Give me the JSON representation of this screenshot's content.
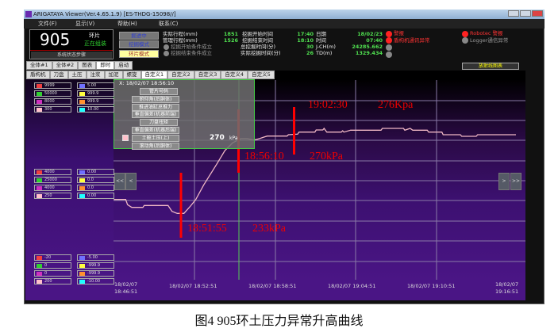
{
  "window": {
    "title": "ARIGATAYA Viewer(Ver.4.65.1.9) [ES-THDG-15098//]"
  },
  "menu": [
    "文件(F)",
    "显示(V)",
    "帮助(H)",
    "联系(C)"
  ],
  "display": {
    "ring_number": "905",
    "ring_label": "环片",
    "status": "正在组装",
    "footer": "系统状态步骤"
  },
  "mode_buttons": [
    "掘进中",
    "挖掘模式",
    "环片模式"
  ],
  "info": {
    "rows": [
      {
        "label": "实际行程(mm)",
        "value": "1851",
        "label2": "挖掘开始时间",
        "value2": "17:40",
        "label3": "日期",
        "value3": "18/02/23"
      },
      {
        "label": "管理行程(mm)",
        "value": "1526",
        "label2": "挖掘结束时间",
        "value2": "18:10",
        "label3": "时间",
        "value3": "07:40"
      },
      {
        "label": "挖掘开始条件成立",
        "value": "",
        "label2": "总挖掘时间(分)",
        "value2": "30",
        "label3": "J-CH(m)",
        "value3": "24285.662"
      },
      {
        "label": "挖掘结束条件成立",
        "value": "",
        "label2": "实际挖掘时间(分)",
        "value2": "26",
        "label3": "TD(m)",
        "value3": "1329.434"
      }
    ],
    "alarms": [
      "警报",
      "盾构机通讯异常"
    ],
    "alarms_right": [
      "Robotec 警报",
      "Logger通信异常"
    ],
    "colors": {
      "alarm": "#ff2222",
      "inactive": "#888888",
      "value": "#50e050"
    }
  },
  "radiation_button": "放射线图表",
  "tabs_top": [
    "全体#1",
    "全体#2",
    "图表",
    "即时",
    "启动"
  ],
  "tabs_top_active": "即时",
  "tabs_sub": [
    "盾构机",
    "刀盘",
    "土压",
    "注浆",
    "加泥",
    "螺旋",
    "自定义1",
    "自定义2",
    "自定义3",
    "自定义4",
    "自定义5"
  ],
  "tabs_sub_active": "自定义1",
  "legend_colors": [
    "#f04040",
    "#30d030",
    "#d030c0",
    "#ffc0cb",
    "#7070ff",
    "#ffff40",
    "#ff9030",
    "#20ffff"
  ],
  "scale_max": [
    [
      "9999",
      "5.00"
    ],
    [
      "50000",
      "999.9"
    ],
    [
      "8000",
      "999.9"
    ],
    [
      "300",
      "10.00"
    ]
  ],
  "scale_mid": [
    [
      "4000",
      "0.00"
    ],
    [
      "25000",
      "0.0"
    ],
    [
      "4000",
      "0.0"
    ],
    [
      "250",
      "0.00"
    ]
  ],
  "scale_min": [
    [
      "-20",
      "-5.00"
    ],
    [
      "0",
      "-999.9"
    ],
    [
      "0",
      "-999.9"
    ],
    [
      "200",
      "-10.00"
    ]
  ],
  "nav": {
    "first": "<<",
    "prev": "<",
    "next": ">",
    "last": ">>"
  },
  "cursor": {
    "header": "X: 18/02/07 18:56:10",
    "items": [
      "管片号码",
      "俯仰角(后胴体)",
      "推进油缸总推力",
      "垂直偏差(机器前端)",
      "刀盘扭矩",
      "垂直偏差(机器后端)",
      "土舱土压(上)",
      "滚动角(后胴体)"
    ],
    "selected": "土舱土压(上)",
    "value": "270",
    "unit": "kPa"
  },
  "time_axis": {
    "first_date": "18/02/07",
    "first_time": "18:46:51",
    "ticks": [
      "18/02/07 18:52:51",
      "18/02/07 18:58:51",
      "18/02/07 19:04:51",
      "18/02/07 19:10:51"
    ],
    "last_date": "18/02/07",
    "last_time": "19:16:51"
  },
  "annotations": [
    {
      "time": "18:51:55",
      "value": "233kPa"
    },
    {
      "time": "18:56:10",
      "value": "270kPa"
    },
    {
      "time": "19:02:30",
      "value": "276Kpa"
    }
  ],
  "caption": "图4 905环土压力异常升高曲线"
}
